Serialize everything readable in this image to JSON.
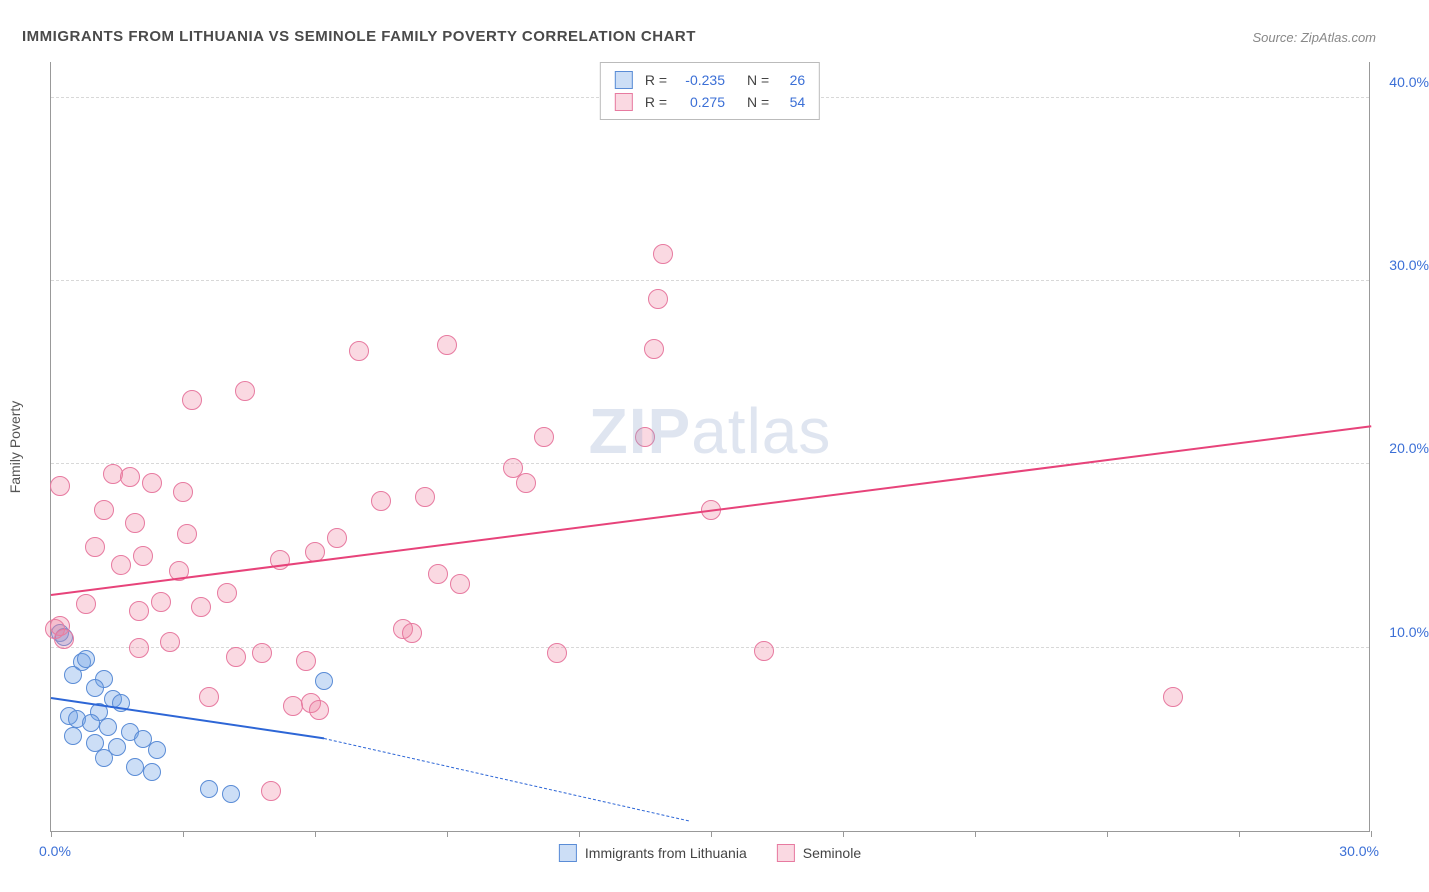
{
  "title": "IMMIGRANTS FROM LITHUANIA VS SEMINOLE FAMILY POVERTY CORRELATION CHART",
  "source": "Source: ZipAtlas.com",
  "y_axis_title": "Family Poverty",
  "watermark_bold": "ZIP",
  "watermark_light": "atlas",
  "chart": {
    "type": "scatter",
    "xlim": [
      0,
      30
    ],
    "ylim": [
      0,
      42
    ],
    "x_ticks": [
      0,
      3,
      6,
      9,
      12,
      15,
      18,
      21,
      24,
      27,
      30
    ],
    "x_tick_labels_shown": {
      "0": "0.0%",
      "30": "30.0%"
    },
    "y_ticks": [
      10,
      20,
      30,
      40
    ],
    "y_tick_labels": [
      "10.0%",
      "20.0%",
      "30.0%",
      "40.0%"
    ],
    "grid_color": "#d8d8d8",
    "axis_color": "#999999",
    "background_color": "#ffffff",
    "tick_label_color": "#3b6fd6",
    "series": [
      {
        "name": "Immigrants from Lithuania",
        "fill_color": "rgba(110,160,230,0.35)",
        "stroke_color": "#5a8cd6",
        "trend_color": "#2d66d6",
        "marker_radius": 9,
        "R": "-0.235",
        "N": "26",
        "trend": {
          "x1": 0,
          "y1": 7.2,
          "x2": 6.2,
          "y2": 5.0,
          "dash_to_x": 14.5,
          "dash_to_y": 0.5
        },
        "points": [
          [
            0.2,
            10.8
          ],
          [
            0.3,
            10.6
          ],
          [
            0.7,
            9.2
          ],
          [
            0.8,
            9.4
          ],
          [
            0.5,
            8.5
          ],
          [
            1.2,
            8.3
          ],
          [
            1.0,
            7.8
          ],
          [
            1.4,
            7.2
          ],
          [
            1.6,
            7.0
          ],
          [
            1.1,
            6.5
          ],
          [
            0.4,
            6.3
          ],
          [
            0.6,
            6.1
          ],
          [
            0.9,
            5.9
          ],
          [
            1.3,
            5.7
          ],
          [
            1.8,
            5.4
          ],
          [
            0.5,
            5.2
          ],
          [
            1.0,
            4.8
          ],
          [
            1.5,
            4.6
          ],
          [
            2.1,
            5.0
          ],
          [
            2.4,
            4.4
          ],
          [
            1.2,
            4.0
          ],
          [
            1.9,
            3.5
          ],
          [
            2.3,
            3.2
          ],
          [
            3.6,
            2.3
          ],
          [
            4.1,
            2.0
          ],
          [
            6.2,
            8.2
          ]
        ]
      },
      {
        "name": "Seminole",
        "fill_color": "rgba(240,130,160,0.30)",
        "stroke_color": "#e77aa0",
        "trend_color": "#e7437a",
        "marker_radius": 10,
        "R": "0.275",
        "N": "54",
        "trend": {
          "x1": 0,
          "y1": 12.8,
          "x2": 30,
          "y2": 22.0
        },
        "points": [
          [
            0.1,
            11.0
          ],
          [
            0.2,
            11.2
          ],
          [
            0.3,
            10.5
          ],
          [
            0.2,
            18.8
          ],
          [
            0.8,
            12.4
          ],
          [
            1.0,
            15.5
          ],
          [
            1.4,
            19.5
          ],
          [
            1.6,
            14.5
          ],
          [
            1.8,
            19.3
          ],
          [
            1.9,
            16.8
          ],
          [
            2.0,
            10.0
          ],
          [
            2.1,
            15.0
          ],
          [
            2.3,
            19.0
          ],
          [
            2.5,
            12.5
          ],
          [
            2.7,
            10.3
          ],
          [
            2.9,
            14.2
          ],
          [
            3.1,
            16.2
          ],
          [
            3.2,
            23.5
          ],
          [
            3.4,
            12.2
          ],
          [
            3.6,
            7.3
          ],
          [
            4.2,
            9.5
          ],
          [
            4.4,
            24.0
          ],
          [
            4.8,
            9.7
          ],
          [
            5.0,
            2.2
          ],
          [
            5.2,
            14.8
          ],
          [
            5.5,
            6.8
          ],
          [
            5.8,
            9.3
          ],
          [
            5.9,
            7.0
          ],
          [
            6.0,
            15.2
          ],
          [
            6.1,
            6.6
          ],
          [
            7.0,
            26.2
          ],
          [
            7.5,
            18.0
          ],
          [
            8.0,
            11.0
          ],
          [
            8.2,
            10.8
          ],
          [
            8.5,
            18.2
          ],
          [
            9.0,
            26.5
          ],
          [
            9.3,
            13.5
          ],
          [
            10.5,
            19.8
          ],
          [
            10.8,
            19.0
          ],
          [
            11.2,
            21.5
          ],
          [
            11.5,
            9.7
          ],
          [
            13.5,
            21.5
          ],
          [
            13.7,
            26.3
          ],
          [
            13.8,
            29.0
          ],
          [
            13.9,
            31.5
          ],
          [
            15.0,
            17.5
          ],
          [
            16.2,
            9.8
          ],
          [
            25.5,
            7.3
          ],
          [
            1.2,
            17.5
          ],
          [
            2.0,
            12.0
          ],
          [
            3.0,
            18.5
          ],
          [
            4.0,
            13.0
          ],
          [
            6.5,
            16.0
          ],
          [
            8.8,
            14.0
          ]
        ]
      }
    ],
    "legend_bottom": [
      {
        "label": "Immigrants from Lithuania",
        "fill": "rgba(110,160,230,0.35)",
        "stroke": "#5a8cd6"
      },
      {
        "label": "Seminole",
        "fill": "rgba(240,130,160,0.30)",
        "stroke": "#e77aa0"
      }
    ]
  }
}
